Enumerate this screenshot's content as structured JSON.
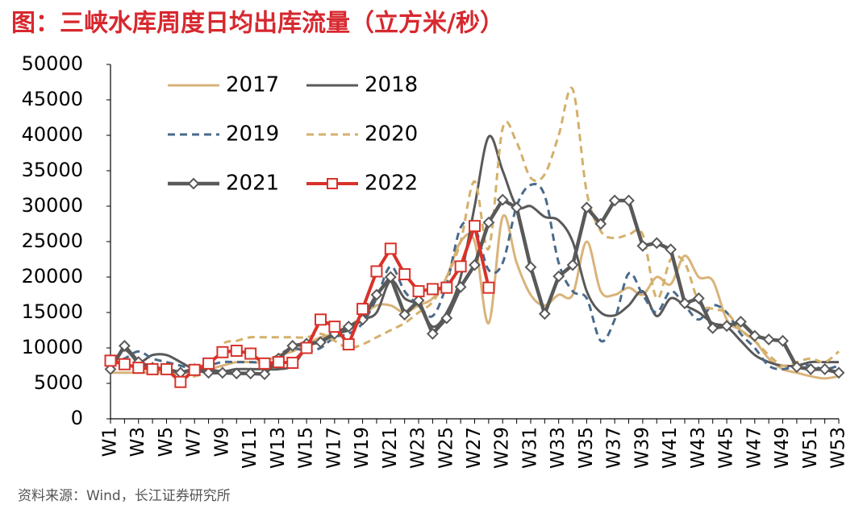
{
  "chart_data": {
    "type": "line",
    "title": "图：三峡水库周度日均出库流量（立方米/秒）",
    "source": "资料来源：Wind，长江证券研究所",
    "categories": [
      "W1",
      null,
      "W3",
      null,
      "W5",
      null,
      "W7",
      null,
      "W9",
      null,
      "W11",
      null,
      "W13",
      null,
      "W15",
      null,
      "W17",
      null,
      "W19",
      null,
      "W21",
      null,
      "W23",
      null,
      "W25",
      null,
      "W27",
      null,
      "W29",
      null,
      "W31",
      null,
      "W33",
      null,
      "W35",
      null,
      "W37",
      null,
      "W39",
      null,
      "W41",
      null,
      "W43",
      null,
      "W45",
      null,
      "W47",
      null,
      "W49",
      null,
      "W51",
      null,
      "W53"
    ],
    "ylim": [
      0,
      50000
    ],
    "yticks": [
      0,
      5000,
      10000,
      15000,
      20000,
      25000,
      30000,
      35000,
      40000,
      45000,
      50000
    ],
    "grid": false,
    "series": [
      {
        "name": "2017",
        "color": "#d9b37a",
        "smooth": true,
        "dash": false,
        "width": 3,
        "marker": null,
        "values": [
          6500,
          6500,
          6500,
          6500,
          6500,
          6500,
          6500,
          7000,
          7500,
          8000,
          8000,
          8000,
          9000,
          9500,
          10500,
          11500,
          12000,
          13000,
          14500,
          16000,
          16000,
          15000,
          16000,
          17000,
          20000,
          25000,
          25000,
          13500,
          28500,
          22000,
          17500,
          16000,
          17500,
          17500,
          25000,
          18000,
          17500,
          18500,
          17500,
          20000,
          19000,
          23000,
          20000,
          19500,
          14000,
          12500,
          11000,
          8500,
          7000,
          6500,
          6000,
          5700,
          6000
        ]
      },
      {
        "name": "2018",
        "color": "#595959",
        "smooth": true,
        "dash": false,
        "width": 3,
        "marker": null,
        "values": [
          7500,
          9700,
          8000,
          9000,
          9000,
          8000,
          7000,
          7000,
          6700,
          7000,
          7000,
          7000,
          7000,
          7500,
          10000,
          11000,
          12000,
          12500,
          14000,
          15000,
          19500,
          17000,
          16000,
          13000,
          15000,
          20000,
          30000,
          39800,
          35000,
          30000,
          30000,
          28500,
          28000,
          25000,
          18000,
          15000,
          14600,
          16000,
          18000,
          14500,
          17000,
          16000,
          15000,
          13500,
          13000,
          11000,
          9000,
          8000,
          7500,
          7500,
          8000,
          8000,
          8000
        ]
      },
      {
        "name": "2019",
        "color": "#4a6a8a",
        "smooth": true,
        "dash": true,
        "width": 3,
        "marker": null,
        "values": [
          8000,
          8500,
          9500,
          8500,
          8000,
          7500,
          7000,
          7500,
          8000,
          8000,
          8000,
          8000,
          9000,
          10000,
          9500,
          10000,
          11500,
          12000,
          13500,
          17000,
          21500,
          18000,
          16000,
          14500,
          19000,
          27000,
          27000,
          21000,
          22000,
          30000,
          33000,
          31500,
          22000,
          18000,
          17000,
          11000,
          14000,
          20500,
          17500,
          15000,
          18000,
          16000,
          14000,
          16000,
          15000,
          12000,
          10000,
          7500,
          7000,
          7500,
          7500,
          7000,
          7500
        ]
      },
      {
        "name": "2020",
        "color": "#d4b06a",
        "smooth": true,
        "dash": true,
        "width": 3,
        "marker": null,
        "values": [
          7500,
          8000,
          7500,
          7000,
          6500,
          6000,
          6000,
          7000,
          10500,
          11000,
          11500,
          11500,
          11500,
          11500,
          11500,
          12000,
          11000,
          10000,
          10500,
          11500,
          12500,
          13500,
          15000,
          16500,
          20000,
          25000,
          33500,
          24000,
          41000,
          39000,
          34000,
          34500,
          40000,
          46500,
          32000,
          26500,
          25500,
          26000,
          26000,
          17000,
          22500,
          22000,
          16500,
          15500,
          15000,
          12500,
          11000,
          9000,
          7500,
          8000,
          8500,
          8000,
          9500
        ]
      },
      {
        "name": "2021",
        "color": "#595959",
        "smooth": false,
        "dash": false,
        "width": 4.5,
        "marker": "diamond",
        "values": [
          7000,
          10300,
          8000,
          7200,
          7000,
          6500,
          7000,
          6500,
          6500,
          6400,
          6400,
          6300,
          8500,
          10300,
          10600,
          10800,
          12000,
          13000,
          14000,
          17500,
          20000,
          14700,
          16700,
          12000,
          14200,
          18600,
          21700,
          27700,
          30900,
          29800,
          21400,
          14800,
          20100,
          21700,
          29800,
          27500,
          30800,
          30800,
          24400,
          24800,
          23900,
          16300,
          17000,
          12800,
          13100,
          13700,
          11700,
          11200,
          11000,
          7300,
          7000,
          7000,
          6500
        ]
      },
      {
        "name": "2022",
        "color": "#d9322a",
        "smooth": false,
        "dash": false,
        "width": 4,
        "marker": "square",
        "values": [
          8200,
          7700,
          7200,
          7000,
          7000,
          5200,
          6900,
          7800,
          9400,
          9600,
          9200,
          7800,
          8000,
          7900,
          10000,
          14000,
          13000,
          10500,
          15500,
          20800,
          24000,
          20400,
          18000,
          18300,
          18500,
          21500,
          27200,
          18500,
          null,
          null,
          null,
          null,
          null,
          null,
          null,
          null,
          null,
          null,
          null,
          null,
          null,
          null,
          null,
          null,
          null,
          null,
          null,
          null,
          null,
          null,
          null,
          null,
          null
        ]
      }
    ]
  }
}
